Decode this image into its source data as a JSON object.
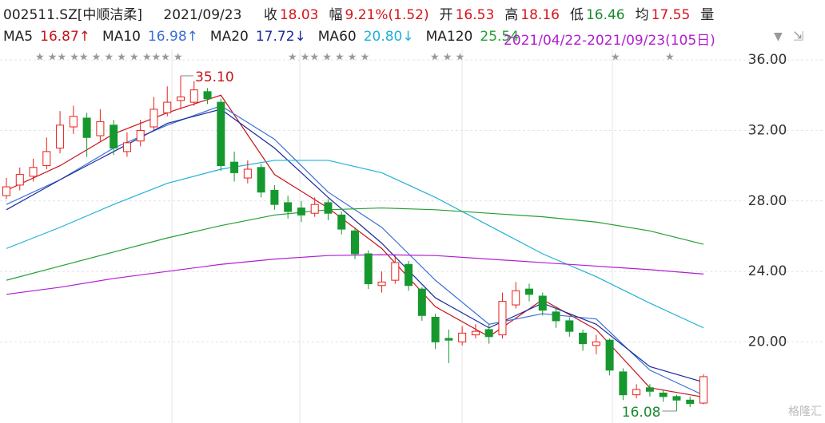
{
  "header": {
    "code": "002511.SZ[中顺洁柔]",
    "date": "2021/09/23",
    "fields": [
      {
        "label": "收",
        "value": 18.03,
        "color": "#d6141a"
      },
      {
        "label": "幅",
        "value": "9.21%(1.52)",
        "color": "#d6141a"
      },
      {
        "label": "开",
        "value": 16.53,
        "color": "#d6141a"
      },
      {
        "label": "高",
        "value": 18.16,
        "color": "#d6141a"
      },
      {
        "label": "低",
        "value": 16.46,
        "color": "#1a8a2e"
      },
      {
        "label": "均",
        "value": 17.55,
        "color": "#d6141a"
      },
      {
        "label": "量"
      }
    ]
  },
  "chart_data": {
    "type": "candlestick",
    "range_label": "2021/04/22-2021/09/23(105日)",
    "range_color": "#b01ed0",
    "up_color": "#e8201a",
    "down_color": "#16982f",
    "open": [
      28.3,
      28.9,
      29.4,
      30.0,
      31.0,
      32.2,
      32.7,
      31.7,
      32.3,
      30.8,
      31.4,
      32.2,
      33.0,
      33.7,
      33.6,
      34.2,
      33.6,
      30.2,
      29.3,
      29.9,
      28.6,
      27.9,
      27.6,
      27.3,
      27.9,
      27.2,
      26.3,
      25.0,
      23.2,
      23.5,
      24.4,
      23.0,
      21.4,
      20.2,
      20.0,
      20.4,
      20.7,
      20.4,
      22.1,
      23.0,
      22.6,
      21.7,
      21.2,
      20.5,
      19.8,
      20.1,
      18.3,
      17.0,
      17.4,
      17.1,
      16.9,
      16.7,
      16.53
    ],
    "high": [
      29.3,
      29.9,
      30.4,
      31.6,
      33.1,
      33.4,
      33.0,
      33.2,
      32.6,
      31.9,
      32.6,
      33.9,
      34.5,
      35.1,
      34.8,
      34.4,
      33.8,
      30.8,
      30.3,
      30.1,
      28.9,
      28.3,
      28.0,
      28.2,
      28.1,
      27.4,
      26.5,
      25.2,
      24.0,
      24.9,
      24.6,
      23.1,
      21.6,
      20.7,
      20.9,
      21.0,
      21.0,
      22.8,
      23.4,
      23.3,
      22.8,
      21.9,
      21.4,
      20.7,
      20.4,
      20.2,
      18.5,
      17.6,
      17.6,
      17.3,
      17.0,
      16.9,
      18.16
    ],
    "low": [
      28.1,
      28.6,
      29.1,
      29.8,
      30.7,
      31.8,
      30.5,
      31.4,
      30.6,
      30.5,
      31.1,
      32.0,
      32.8,
      33.2,
      33.4,
      33.5,
      29.7,
      29.1,
      29.0,
      28.2,
      27.5,
      27.0,
      26.8,
      27.1,
      26.9,
      26.1,
      24.7,
      23.0,
      22.8,
      23.3,
      22.9,
      21.2,
      19.6,
      18.8,
      19.8,
      20.2,
      19.9,
      20.2,
      21.9,
      22.3,
      21.5,
      20.8,
      20.3,
      19.5,
      19.3,
      18.1,
      16.7,
      16.8,
      16.9,
      16.6,
      16.08,
      16.3,
      16.46
    ],
    "close": [
      28.8,
      29.5,
      29.9,
      30.8,
      32.3,
      32.8,
      31.6,
      32.5,
      31.0,
      31.3,
      32.0,
      33.2,
      33.6,
      33.9,
      34.3,
      33.8,
      30.0,
      29.6,
      29.8,
      28.5,
      27.8,
      27.4,
      27.2,
      27.8,
      27.3,
      26.4,
      25.0,
      23.3,
      23.4,
      24.5,
      23.2,
      21.5,
      20.0,
      20.1,
      20.5,
      20.6,
      20.3,
      22.3,
      22.9,
      22.7,
      21.8,
      21.2,
      20.6,
      19.9,
      20.0,
      18.4,
      17.0,
      17.3,
      17.2,
      16.9,
      16.7,
      16.5,
      18.03
    ],
    "series": [
      {
        "name": "MA5",
        "legend_label": "16.87↑",
        "color": "#c8141a",
        "x": [
          0,
          4,
          8,
          12,
          16,
          20,
          24,
          28,
          32,
          36,
          40,
          44,
          48,
          52
        ],
        "values": [
          28.6,
          30.0,
          31.8,
          33.0,
          34.0,
          29.5,
          27.6,
          25.3,
          22.0,
          20.3,
          22.4,
          20.7,
          17.4,
          16.87
        ]
      },
      {
        "name": "MA10",
        "legend_label": "16.98↑",
        "color": "#3a6fd8",
        "x": [
          0,
          4,
          8,
          12,
          16,
          20,
          24,
          28,
          32,
          36,
          40,
          44,
          48,
          52
        ],
        "values": [
          27.8,
          29.2,
          31.0,
          32.3,
          33.4,
          31.5,
          28.5,
          26.5,
          23.5,
          21.0,
          21.6,
          21.3,
          18.4,
          16.98
        ]
      },
      {
        "name": "MA20",
        "legend_label": "17.72↓",
        "color": "#1a2a9a",
        "x": [
          0,
          4,
          8,
          12,
          16,
          20,
          24,
          28,
          32,
          36,
          40,
          44,
          48,
          52
        ],
        "values": [
          27.5,
          29.2,
          30.8,
          32.4,
          33.2,
          31.0,
          28.2,
          25.6,
          22.5,
          20.8,
          22.2,
          21.0,
          18.6,
          17.72
        ]
      },
      {
        "name": "MA60",
        "legend_label": "20.80↓",
        "color": "#20b0d8",
        "x": [
          0,
          4,
          8,
          12,
          16,
          20,
          24,
          28,
          32,
          36,
          40,
          44,
          48,
          52
        ],
        "values": [
          25.3,
          26.5,
          27.8,
          29.0,
          29.8,
          30.3,
          30.3,
          29.6,
          28.2,
          26.6,
          25.0,
          23.7,
          22.2,
          20.8
        ]
      },
      {
        "name": "MA120",
        "legend_label": "25.54",
        "color": "#22a032",
        "x": [
          0,
          4,
          8,
          12,
          16,
          20,
          24,
          28,
          32,
          36,
          40,
          44,
          48,
          52
        ],
        "values": [
          23.5,
          24.3,
          25.1,
          25.9,
          26.6,
          27.2,
          27.5,
          27.6,
          27.5,
          27.3,
          27.1,
          26.8,
          26.3,
          25.54
        ]
      },
      {
        "color": "#b01ed0",
        "x": [
          0,
          4,
          8,
          12,
          16,
          20,
          24,
          28,
          32,
          36,
          40,
          44,
          48,
          52
        ],
        "values": [
          22.7,
          23.1,
          23.6,
          24.0,
          24.4,
          24.7,
          24.9,
          24.95,
          24.9,
          24.7,
          24.5,
          24.3,
          24.1,
          23.85
        ]
      }
    ],
    "annotations": [
      {
        "text": "35.10",
        "value": 35.1
      },
      {
        "text": "16.08",
        "value": 16.08
      }
    ],
    "ylim": [
      15.4,
      39.4
    ],
    "yticks": [
      {
        "value": 20,
        "label": "20.00"
      },
      {
        "value": 24,
        "label": "24.00"
      },
      {
        "value": 28,
        "label": "28.00"
      },
      {
        "value": 32,
        "label": "32.00"
      },
      {
        "value": 36,
        "label": "36.00"
      }
    ],
    "grid": true,
    "watermark": "格隆汇"
  }
}
